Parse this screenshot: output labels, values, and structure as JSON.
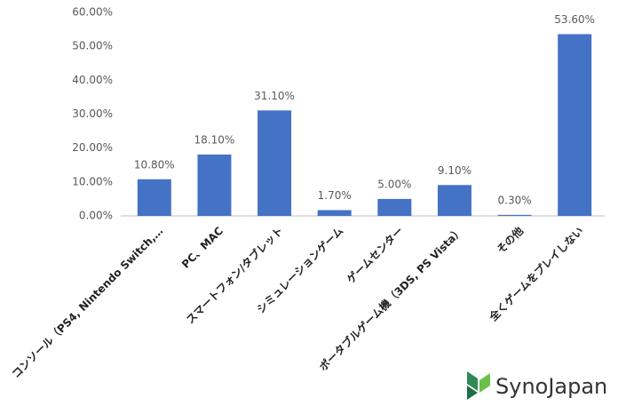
{
  "chart_data": {
    "type": "bar",
    "categories": [
      "コンソール（PS4, Nintendo Switch,…",
      "PC、MAC",
      "スマートフォン/タブレット",
      "シミュレーションゲーム",
      "ゲームセンター",
      "ポータブルゲーム機（3DS, PS Vista）",
      "その他",
      "全くゲームをプレイしない"
    ],
    "values": [
      10.8,
      18.1,
      31.1,
      1.7,
      5.0,
      9.1,
      0.3,
      53.6
    ],
    "value_labels": [
      "10.80%",
      "18.10%",
      "31.10%",
      "1.70%",
      "5.00%",
      "9.10%",
      "0.30%",
      "53.60%"
    ],
    "color": "#4472c4",
    "ylim": [
      0,
      60
    ],
    "yticks": [
      {
        "value": 0,
        "label": "0.00%"
      },
      {
        "value": 10,
        "label": "10.00%"
      },
      {
        "value": 20,
        "label": "20.00%"
      },
      {
        "value": 30,
        "label": "30.00%"
      },
      {
        "value": 40,
        "label": "40.00%"
      },
      {
        "value": 50,
        "label": "50.00%"
      },
      {
        "value": 60,
        "label": "60.00%"
      }
    ],
    "grid": false
  },
  "logo": "SynoJapan"
}
